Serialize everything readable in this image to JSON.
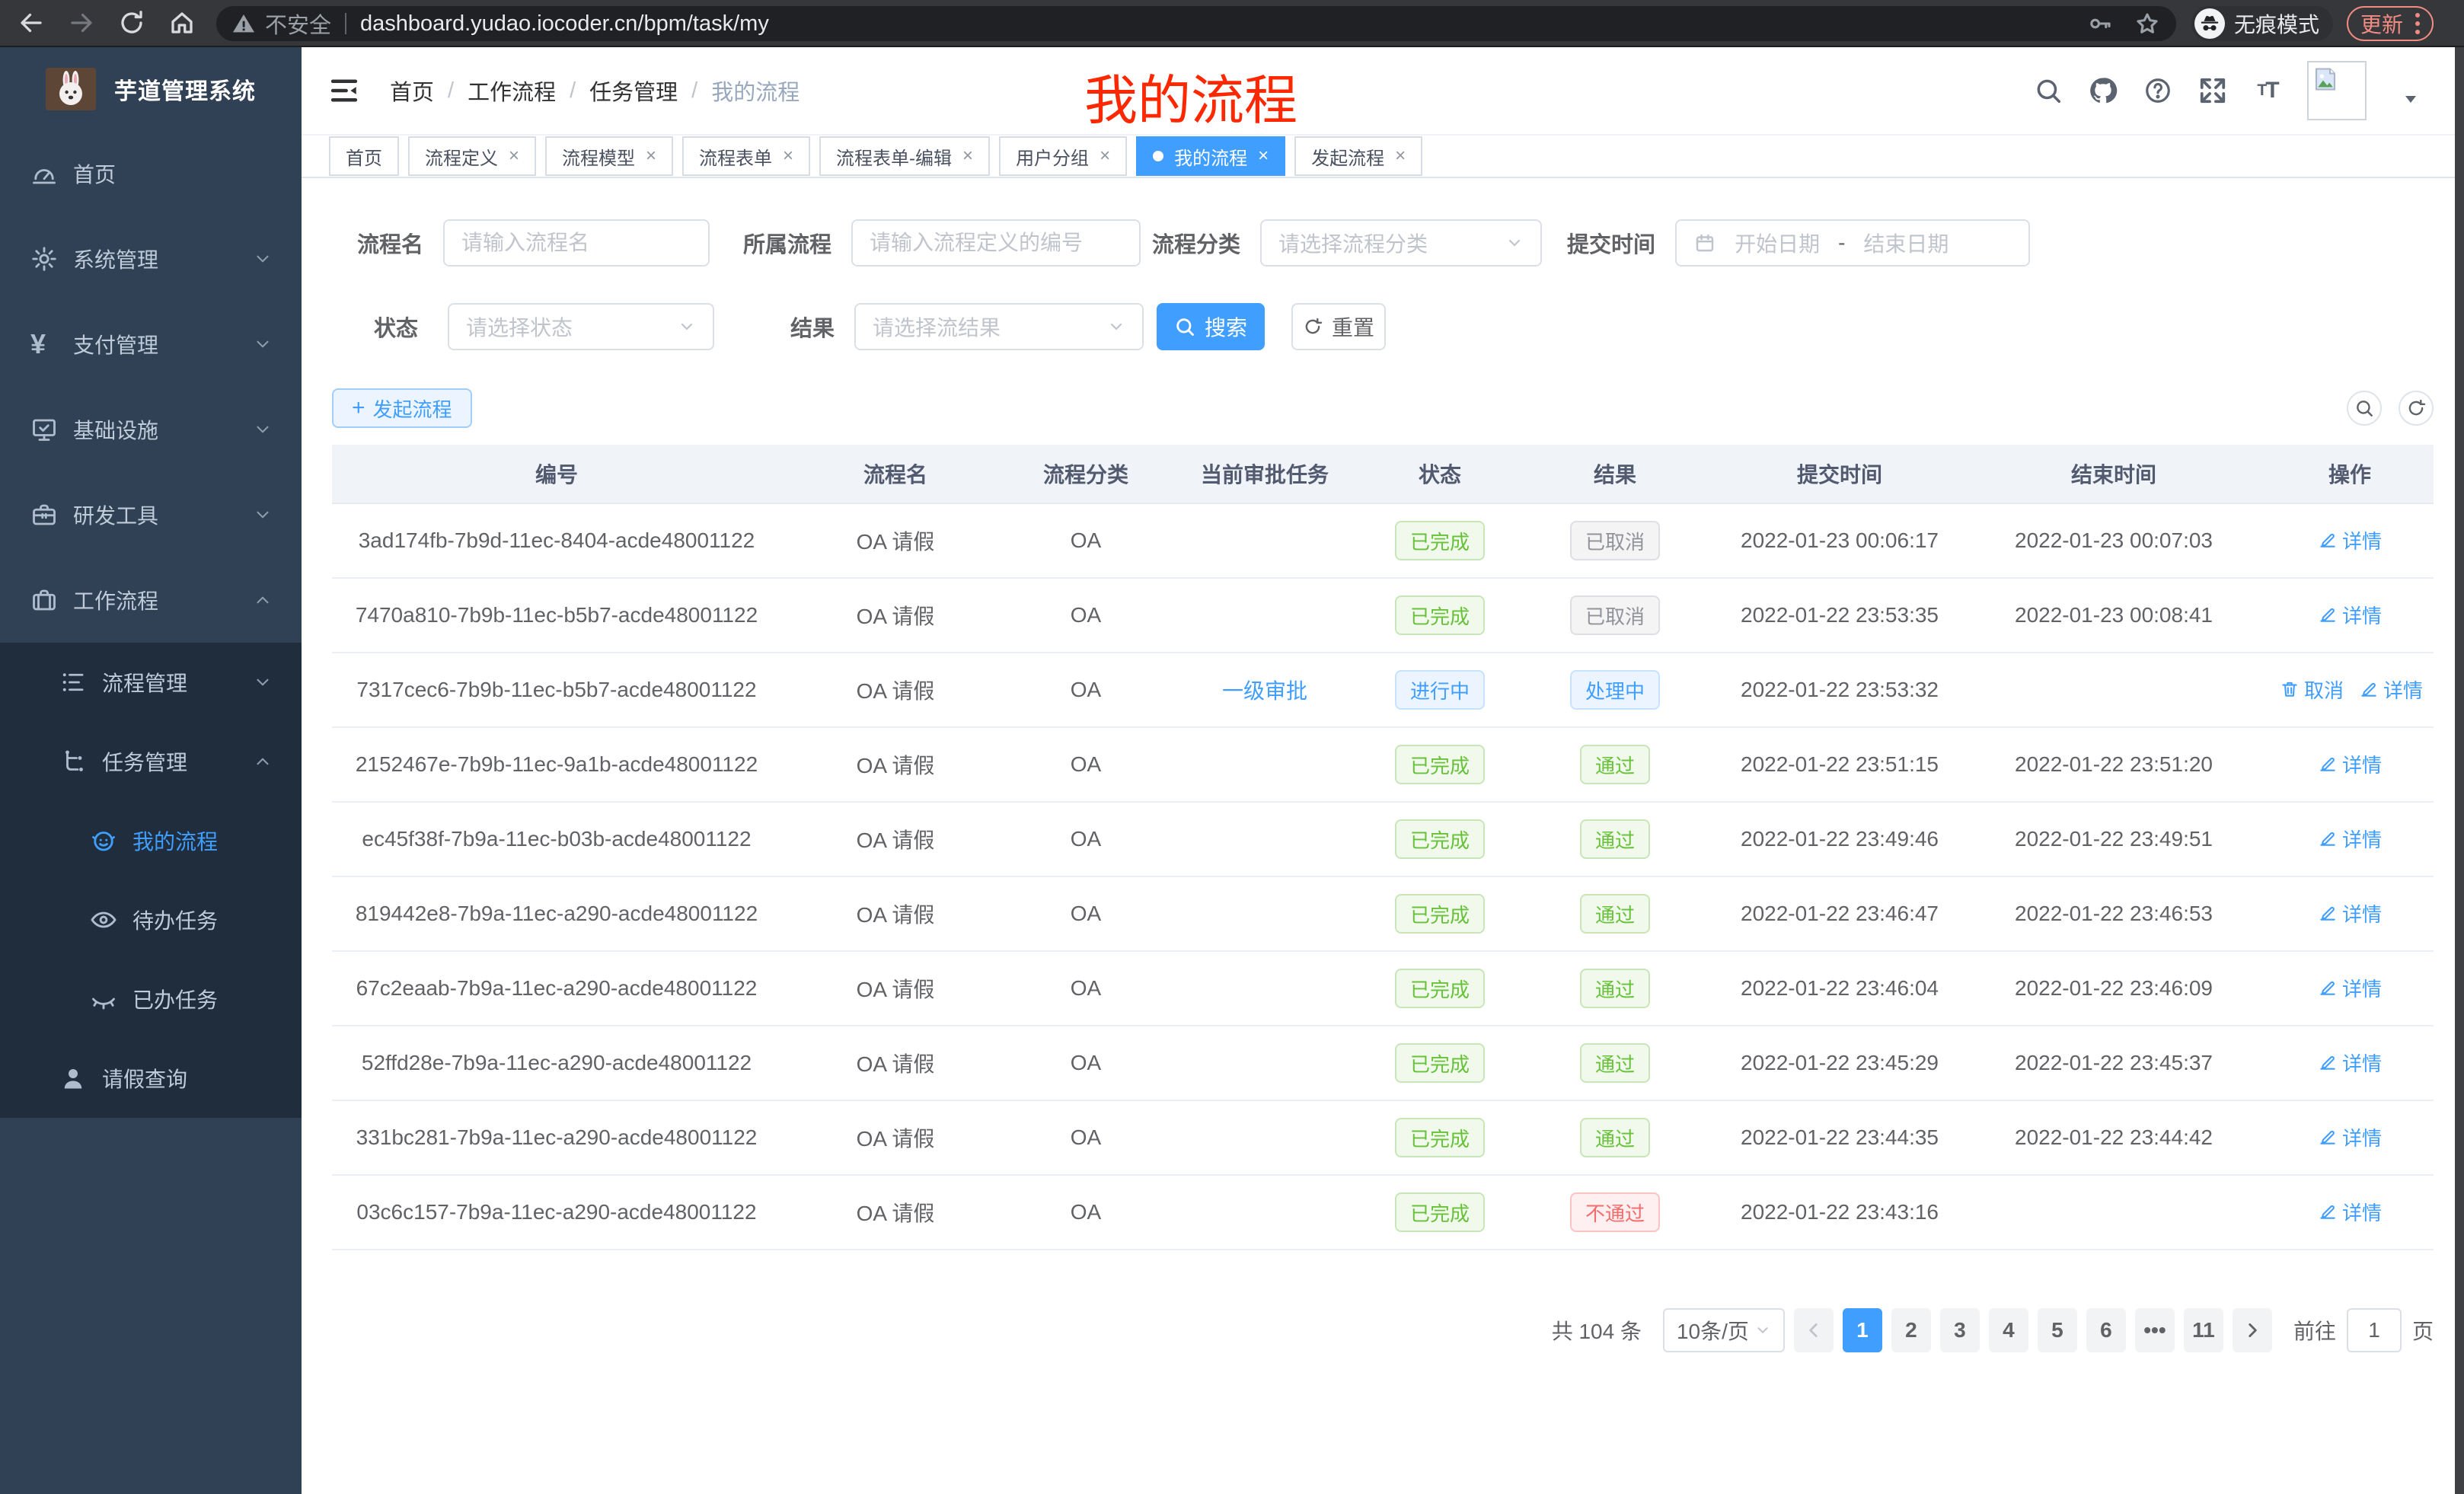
{
  "colors": {
    "accent": "#409eff",
    "success": "#67c23a",
    "danger": "#f56c6c",
    "info": "#909399",
    "sidebar_bg": "#304156",
    "submenu_bg": "#1f2d3d",
    "overlay_red": "#fe2800",
    "update_badge": "#f28b82"
  },
  "browser": {
    "security_label": "不安全",
    "url": "dashboard.yudao.iocoder.cn/bpm/task/my",
    "incognito_label": "无痕模式",
    "update_label": "更新"
  },
  "sidebar": {
    "app_title": "芋道管理系统",
    "items": [
      {
        "key": "home",
        "label": "首页",
        "icon": "dashboard-icon",
        "level": 1
      },
      {
        "key": "system",
        "label": "系统管理",
        "icon": "gear-icon",
        "level": 1,
        "chevron": "down"
      },
      {
        "key": "payment",
        "label": "支付管理",
        "icon": "yen-icon",
        "level": 1,
        "chevron": "down"
      },
      {
        "key": "infrastructure",
        "label": "基础设施",
        "icon": "monitor-icon",
        "level": 1,
        "chevron": "down"
      },
      {
        "key": "dev-tools",
        "label": "研发工具",
        "icon": "toolbox-icon",
        "level": 1,
        "chevron": "down"
      },
      {
        "key": "workflow",
        "label": "工作流程",
        "icon": "briefcase-icon",
        "level": 1,
        "chevron": "up"
      },
      {
        "key": "process-mgmt",
        "label": "流程管理",
        "icon": "list-icon",
        "level": 2,
        "chevron": "down",
        "dark": true
      },
      {
        "key": "task-mgmt",
        "label": "任务管理",
        "icon": "flow-tree-icon",
        "level": 2,
        "chevron": "up",
        "dark": true
      },
      {
        "key": "my-process",
        "label": "我的流程",
        "icon": "face-icon",
        "level": 3,
        "active": true,
        "dark": true
      },
      {
        "key": "todo-tasks",
        "label": "待办任务",
        "icon": "eye-icon",
        "level": 3,
        "dark": true
      },
      {
        "key": "done-tasks",
        "label": "已办任务",
        "icon": "eye-closed-icon",
        "level": 3,
        "dark": true
      },
      {
        "key": "leave-query",
        "label": "请假查询",
        "icon": "user-icon",
        "level": 2,
        "dark": true
      }
    ]
  },
  "header": {
    "breadcrumb": [
      "首页",
      "工作流程",
      "任务管理",
      "我的流程"
    ],
    "overlay_title": "我的流程"
  },
  "tabs": [
    {
      "label": "首页",
      "closable": false,
      "active": false
    },
    {
      "label": "流程定义",
      "closable": true,
      "active": false
    },
    {
      "label": "流程模型",
      "closable": true,
      "active": false
    },
    {
      "label": "流程表单",
      "closable": true,
      "active": false
    },
    {
      "label": "流程表单-编辑",
      "closable": true,
      "active": false
    },
    {
      "label": "用户分组",
      "closable": true,
      "active": false
    },
    {
      "label": "我的流程",
      "closable": true,
      "active": true
    },
    {
      "label": "发起流程",
      "closable": true,
      "active": false
    }
  ],
  "filters": {
    "name": {
      "label": "流程名",
      "placeholder": "请输入流程名"
    },
    "process": {
      "label": "所属流程",
      "placeholder": "请输入流程定义的编号"
    },
    "category": {
      "label": "流程分类",
      "placeholder": "请选择流程分类"
    },
    "submit_time": {
      "label": "提交时间",
      "start_placeholder": "开始日期",
      "separator": "-",
      "end_placeholder": "结束日期"
    },
    "status": {
      "label": "状态",
      "placeholder": "请选择状态"
    },
    "result": {
      "label": "结果",
      "placeholder": "请选择流结果"
    },
    "search_label": "搜索",
    "reset_label": "重置"
  },
  "toolbar": {
    "create_label": "发起流程"
  },
  "table": {
    "columns": [
      "编号",
      "流程名",
      "流程分类",
      "当前审批任务",
      "状态",
      "结果",
      "提交时间",
      "结束时间",
      "操作"
    ],
    "rows": [
      {
        "id": "3ad174fb-7b9d-11ec-8404-acde48001122",
        "name": "OA 请假",
        "category": "OA",
        "task": "",
        "status": "已完成",
        "status_type": "success",
        "result": "已取消",
        "result_type": "info",
        "submit_time": "2022-01-23 00:06:17",
        "end_time": "2022-01-23 00:07:03",
        "actions": [
          {
            "label": "详情",
            "icon": "edit-icon"
          }
        ]
      },
      {
        "id": "7470a810-7b9b-11ec-b5b7-acde48001122",
        "name": "OA 请假",
        "category": "OA",
        "task": "",
        "status": "已完成",
        "status_type": "success",
        "result": "已取消",
        "result_type": "info",
        "submit_time": "2022-01-22 23:53:35",
        "end_time": "2022-01-23 00:08:41",
        "actions": [
          {
            "label": "详情",
            "icon": "edit-icon"
          }
        ]
      },
      {
        "id": "7317cec6-7b9b-11ec-b5b7-acde48001122",
        "name": "OA 请假",
        "category": "OA",
        "task": "一级审批",
        "status": "进行中",
        "status_type": "primary",
        "result": "处理中",
        "result_type": "primary",
        "submit_time": "2022-01-22 23:53:32",
        "end_time": "",
        "actions": [
          {
            "label": "取消",
            "icon": "delete-icon"
          },
          {
            "label": "详情",
            "icon": "edit-icon"
          }
        ]
      },
      {
        "id": "2152467e-7b9b-11ec-9a1b-acde48001122",
        "name": "OA 请假",
        "category": "OA",
        "task": "",
        "status": "已完成",
        "status_type": "success",
        "result": "通过",
        "result_type": "success",
        "submit_time": "2022-01-22 23:51:15",
        "end_time": "2022-01-22 23:51:20",
        "actions": [
          {
            "label": "详情",
            "icon": "edit-icon"
          }
        ]
      },
      {
        "id": "ec45f38f-7b9a-11ec-b03b-acde48001122",
        "name": "OA 请假",
        "category": "OA",
        "task": "",
        "status": "已完成",
        "status_type": "success",
        "result": "通过",
        "result_type": "success",
        "submit_time": "2022-01-22 23:49:46",
        "end_time": "2022-01-22 23:49:51",
        "actions": [
          {
            "label": "详情",
            "icon": "edit-icon"
          }
        ]
      },
      {
        "id": "819442e8-7b9a-11ec-a290-acde48001122",
        "name": "OA 请假",
        "category": "OA",
        "task": "",
        "status": "已完成",
        "status_type": "success",
        "result": "通过",
        "result_type": "success",
        "submit_time": "2022-01-22 23:46:47",
        "end_time": "2022-01-22 23:46:53",
        "actions": [
          {
            "label": "详情",
            "icon": "edit-icon"
          }
        ]
      },
      {
        "id": "67c2eaab-7b9a-11ec-a290-acde48001122",
        "name": "OA 请假",
        "category": "OA",
        "task": "",
        "status": "已完成",
        "status_type": "success",
        "result": "通过",
        "result_type": "success",
        "submit_time": "2022-01-22 23:46:04",
        "end_time": "2022-01-22 23:46:09",
        "actions": [
          {
            "label": "详情",
            "icon": "edit-icon"
          }
        ]
      },
      {
        "id": "52ffd28e-7b9a-11ec-a290-acde48001122",
        "name": "OA 请假",
        "category": "OA",
        "task": "",
        "status": "已完成",
        "status_type": "success",
        "result": "通过",
        "result_type": "success",
        "submit_time": "2022-01-22 23:45:29",
        "end_time": "2022-01-22 23:45:37",
        "actions": [
          {
            "label": "详情",
            "icon": "edit-icon"
          }
        ]
      },
      {
        "id": "331bc281-7b9a-11ec-a290-acde48001122",
        "name": "OA 请假",
        "category": "OA",
        "task": "",
        "status": "已完成",
        "status_type": "success",
        "result": "通过",
        "result_type": "success",
        "submit_time": "2022-01-22 23:44:35",
        "end_time": "2022-01-22 23:44:42",
        "actions": [
          {
            "label": "详情",
            "icon": "edit-icon"
          }
        ]
      },
      {
        "id": "03c6c157-7b9a-11ec-a290-acde48001122",
        "name": "OA 请假",
        "category": "OA",
        "task": "",
        "status": "已完成",
        "status_type": "success",
        "result": "不通过",
        "result_type": "danger",
        "submit_time": "2022-01-22 23:43:16",
        "end_time": "",
        "actions": [
          {
            "label": "详情",
            "icon": "edit-icon"
          }
        ]
      }
    ]
  },
  "pagination": {
    "total": "共 104 条",
    "page_size": "10条/页",
    "pages": [
      "1",
      "2",
      "3",
      "4",
      "5",
      "6",
      "•••",
      "11"
    ],
    "active_page": "1",
    "goto_label": "前往",
    "goto_value": "1",
    "goto_suffix": "页"
  }
}
